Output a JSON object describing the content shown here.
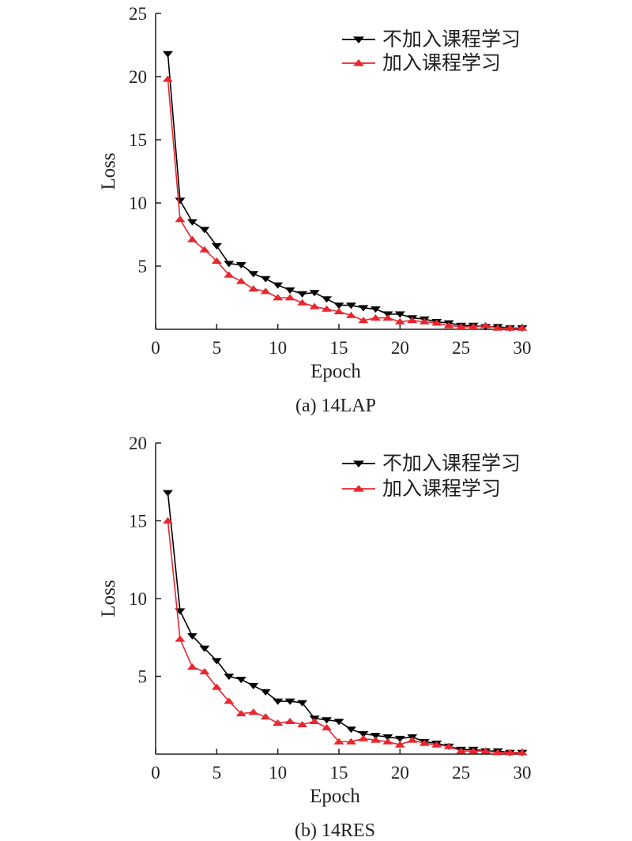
{
  "colors": {
    "series_black": "#000000",
    "series_red": "#e8262e",
    "axis": "#231f20"
  },
  "chart_data": [
    {
      "type": "line",
      "caption": "(a) 14LAP",
      "xlabel": "Epoch",
      "ylabel": "Loss",
      "xlim": [
        0,
        30
      ],
      "ylim": [
        0,
        25
      ],
      "xticks": [
        0,
        5,
        10,
        15,
        20,
        25,
        30
      ],
      "yticks": [
        5,
        10,
        15,
        20,
        25
      ],
      "grid": false,
      "legend": "top-right",
      "x": [
        1,
        2,
        3,
        4,
        5,
        6,
        7,
        8,
        9,
        10,
        11,
        12,
        13,
        14,
        15,
        16,
        17,
        18,
        19,
        20,
        21,
        22,
        23,
        24,
        25,
        26,
        27,
        28,
        29,
        30
      ],
      "series": [
        {
          "name": "不加入课程学习",
          "marker": "triangle-down",
          "color": "#000000",
          "values": [
            21.8,
            10.2,
            8.5,
            7.9,
            6.6,
            5.2,
            5.1,
            4.4,
            4.0,
            3.5,
            3.1,
            2.8,
            2.9,
            2.4,
            1.9,
            1.9,
            1.7,
            1.6,
            1.2,
            1.2,
            0.9,
            0.8,
            0.6,
            0.5,
            0.3,
            0.3,
            0.2,
            0.2,
            0.1,
            0.1
          ]
        },
        {
          "name": "加入课程学习",
          "marker": "triangle-up",
          "color": "#e8262e",
          "values": [
            19.8,
            8.7,
            7.1,
            6.3,
            5.4,
            4.3,
            3.8,
            3.2,
            3.0,
            2.5,
            2.5,
            2.1,
            1.8,
            1.6,
            1.4,
            1.1,
            0.7,
            0.9,
            0.9,
            0.6,
            0.7,
            0.6,
            0.5,
            0.3,
            0.2,
            0.2,
            0.3,
            0.1,
            0.1,
            0.1
          ]
        }
      ]
    },
    {
      "type": "line",
      "caption": "(b) 14RES",
      "xlabel": "Epoch",
      "ylabel": "Loss",
      "xlim": [
        0,
        30
      ],
      "ylim": [
        0,
        20
      ],
      "xticks": [
        0,
        5,
        10,
        15,
        20,
        25,
        30
      ],
      "yticks": [
        5,
        10,
        15,
        20
      ],
      "grid": false,
      "legend": "top-right",
      "x": [
        1,
        2,
        3,
        4,
        5,
        6,
        7,
        8,
        9,
        10,
        11,
        12,
        13,
        14,
        15,
        16,
        17,
        18,
        19,
        20,
        21,
        22,
        23,
        24,
        25,
        26,
        27,
        28,
        29,
        30
      ],
      "series": [
        {
          "name": "不加入课程学习",
          "marker": "triangle-down",
          "color": "#000000",
          "values": [
            16.8,
            9.2,
            7.6,
            6.8,
            6.0,
            5.0,
            4.8,
            4.4,
            4.0,
            3.4,
            3.4,
            3.3,
            2.3,
            2.2,
            2.1,
            1.6,
            1.3,
            1.2,
            1.1,
            1.0,
            1.1,
            0.8,
            0.7,
            0.5,
            0.3,
            0.3,
            0.2,
            0.2,
            0.1,
            0.1
          ]
        },
        {
          "name": "加入课程学习",
          "marker": "triangle-up",
          "color": "#e8262e",
          "values": [
            15.0,
            7.4,
            5.6,
            5.3,
            4.3,
            3.4,
            2.6,
            2.7,
            2.4,
            2.0,
            2.1,
            1.9,
            2.1,
            1.7,
            0.8,
            0.8,
            1.0,
            0.9,
            0.8,
            0.6,
            0.9,
            0.7,
            0.6,
            0.5,
            0.2,
            0.2,
            0.2,
            0.1,
            0.1,
            0.1
          ]
        }
      ]
    }
  ]
}
